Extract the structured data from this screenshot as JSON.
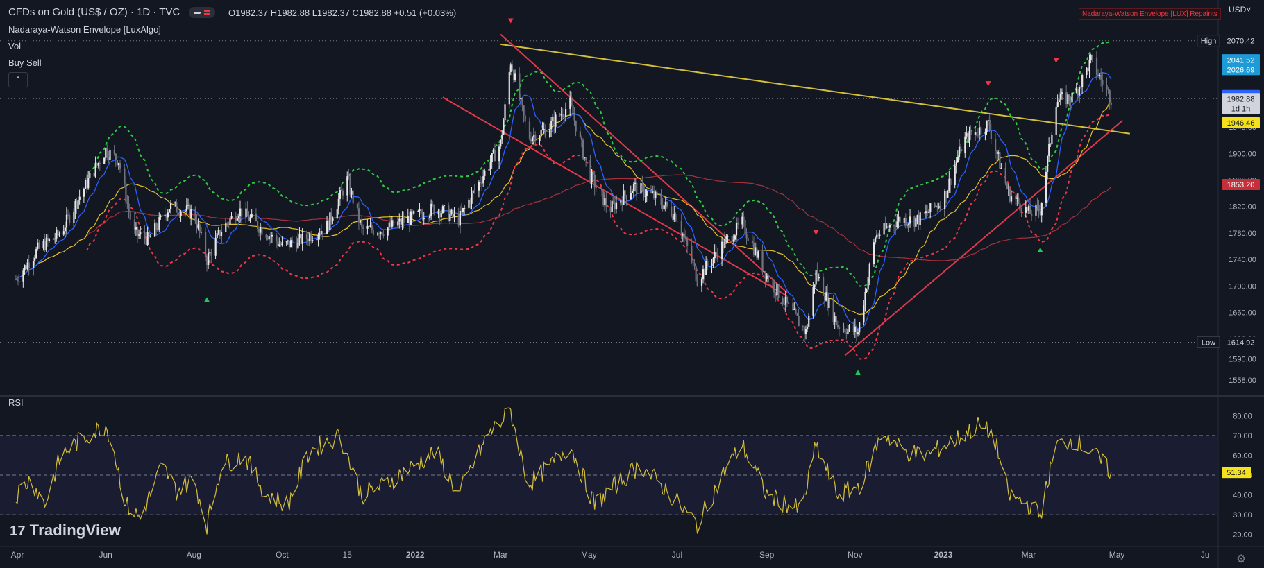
{
  "header": {
    "symbol_title": "CFDs on Gold (US$ / OZ) · 1D · TVC",
    "ohlc": "O1982.37  H1982.88  L1982.37  C1982.88  +0.51 (+0.03%)",
    "indicators": [
      "Nadaraya-Watson Envelope [LuxAlgo]",
      "Vol",
      "Buy Sell"
    ],
    "repaint_notice": "Nadaraya-Watson Envelope [LUX] Repaints",
    "currency": "USD"
  },
  "rsi_panel": {
    "title": "RSI",
    "current_value": "51.34"
  },
  "watermark": "TradingView",
  "colors": {
    "background": "#131722",
    "up_candle": "#e6e6e6",
    "down_candle": "#6f7480",
    "upper_envelope": "#2ecc40",
    "lower_envelope": "#f23645",
    "sma_fast": "#2962ff",
    "sma_mid": "#e6c229",
    "sma_slow": "#a8323c",
    "trendline_yellow": "#d4bf3a",
    "channel_red": "#e03a4a",
    "rsi_line": "#d4bf3a"
  },
  "chart_data": [
    {
      "type": "candlestick",
      "x_axis_labels": [
        "Apr",
        "Jun",
        "Aug",
        "Oct",
        "15",
        "2022",
        "Mar",
        "May",
        "Jul",
        "Sep",
        "Nov",
        "2023",
        "Mar",
        "May",
        "Ju"
      ],
      "y_axis_ticks": [
        1558,
        1590,
        1620,
        1660,
        1700,
        1740,
        1780,
        1820,
        1860,
        1900,
        1940
      ],
      "y_axis_tick_labels": [
        "1558.00",
        "1590.00",
        "1620.00",
        "1660.00",
        "1700.00",
        "1740.00",
        "1780.00",
        "1820.00",
        "1860.00",
        "1900.00",
        "1940.00"
      ],
      "ylim": [
        1540,
        2090
      ],
      "price_labels": [
        {
          "text": "High",
          "value": "2070.42",
          "color": "#131722",
          "text_color": "#d1d4dc",
          "price": 2070.42
        },
        {
          "text": "",
          "value": "2041.58",
          "color": "#1e9bd7",
          "price": 2041.58
        },
        {
          "text": "",
          "value": "2041.52",
          "color": "#1e9bd7",
          "price": 2041.52
        },
        {
          "text": "",
          "value": "2028.65",
          "color": "#1e9bd7",
          "price": 2028.65
        },
        {
          "text": "",
          "value": "2026.69",
          "color": "#1e9bd7",
          "price": 2026.69
        },
        {
          "text": "",
          "value": "1987.59",
          "color": "#2962ff",
          "price": 1987.59
        },
        {
          "text": "",
          "value": "1982.88",
          "color": "#d1d4dc",
          "price": 1982.88,
          "sub": "1d 1h"
        },
        {
          "text": "",
          "value": "1946.46",
          "color": "#f5e11b",
          "price": 1946.46
        },
        {
          "text": "",
          "value": "1853.20",
          "color": "#c62e3a",
          "price": 1853.2
        },
        {
          "text": "Low",
          "value": "1614.92",
          "color": "#131722",
          "text_color": "#d1d4dc",
          "price": 1614.92
        }
      ],
      "price_series": [
        [
          "2021-03-31",
          1710
        ],
        [
          "2021-04-15",
          1755
        ],
        [
          "2021-05-01",
          1780
        ],
        [
          "2021-05-15",
          1840
        ],
        [
          "2021-06-01",
          1905
        ],
        [
          "2021-06-10",
          1890
        ],
        [
          "2021-06-20",
          1780
        ],
        [
          "2021-07-01",
          1770
        ],
        [
          "2021-07-15",
          1820
        ],
        [
          "2021-08-01",
          1810
        ],
        [
          "2021-08-10",
          1740
        ],
        [
          "2021-08-20",
          1785
        ],
        [
          "2021-09-01",
          1815
        ],
        [
          "2021-09-15",
          1790
        ],
        [
          "2021-10-01",
          1760
        ],
        [
          "2021-10-15",
          1770
        ],
        [
          "2021-11-01",
          1790
        ],
        [
          "2021-11-15",
          1860
        ],
        [
          "2021-11-25",
          1785
        ],
        [
          "2021-12-10",
          1785
        ],
        [
          "2022-01-01",
          1805
        ],
        [
          "2022-01-15",
          1818
        ],
        [
          "2022-01-31",
          1800
        ],
        [
          "2022-02-15",
          1860
        ],
        [
          "2022-03-01",
          1915
        ],
        [
          "2022-03-08",
          2040
        ],
        [
          "2022-03-20",
          1925
        ],
        [
          "2022-04-01",
          1935
        ],
        [
          "2022-04-18",
          1975
        ],
        [
          "2022-05-01",
          1870
        ],
        [
          "2022-05-15",
          1815
        ],
        [
          "2022-06-01",
          1850
        ],
        [
          "2022-06-15",
          1835
        ],
        [
          "2022-07-01",
          1805
        ],
        [
          "2022-07-15",
          1710
        ],
        [
          "2022-08-01",
          1760
        ],
        [
          "2022-08-15",
          1795
        ],
        [
          "2022-09-01",
          1715
        ],
        [
          "2022-09-15",
          1670
        ],
        [
          "2022-09-28",
          1630
        ],
        [
          "2022-10-05",
          1720
        ],
        [
          "2022-10-20",
          1640
        ],
        [
          "2022-11-03",
          1630
        ],
        [
          "2022-11-15",
          1775
        ],
        [
          "2022-12-01",
          1800
        ],
        [
          "2022-12-15",
          1800
        ],
        [
          "2023-01-01",
          1830
        ],
        [
          "2023-01-15",
          1920
        ],
        [
          "2023-02-01",
          1945
        ],
        [
          "2023-02-15",
          1840
        ],
        [
          "2023-03-01",
          1810
        ],
        [
          "2023-03-09",
          1815
        ],
        [
          "2023-03-20",
          1980
        ],
        [
          "2023-04-01",
          1985
        ],
        [
          "2023-04-13",
          2040
        ],
        [
          "2023-04-27",
          1982.88
        ]
      ],
      "signals": [
        {
          "type": "buy",
          "date": "2021-08-10"
        },
        {
          "type": "sell",
          "date": "2022-03-08"
        },
        {
          "type": "buy",
          "date": "2022-11-03"
        },
        {
          "type": "sell",
          "date": "2022-10-05"
        },
        {
          "type": "sell",
          "date": "2023-02-01"
        },
        {
          "type": "buy",
          "date": "2023-03-09"
        },
        {
          "type": "sell",
          "date": "2023-03-20"
        }
      ],
      "trendlines": [
        {
          "name": "descending resistance",
          "color": "#d4bf3a",
          "from": [
            "2022-03-01",
            2065
          ],
          "to": [
            "2023-05-10",
            1930
          ]
        },
        {
          "name": "channel upper",
          "color": "#e03a4a",
          "from": [
            "2022-03-01",
            2080
          ],
          "to": [
            "2022-09-15",
            1690
          ]
        },
        {
          "name": "channel lower",
          "color": "#e03a4a",
          "from": [
            "2022-01-20",
            1985
          ],
          "to": [
            "2022-09-15",
            1685
          ]
        },
        {
          "name": "ascending support",
          "color": "#e03a4a",
          "from": [
            "2022-10-25",
            1595
          ],
          "to": [
            "2023-05-05",
            1950
          ]
        }
      ]
    },
    {
      "type": "line",
      "title": "RSI",
      "y_axis_ticks": [
        20,
        30,
        40,
        50,
        60,
        70,
        80
      ],
      "y_axis_tick_labels": [
        "20.00",
        "30.00",
        "40.00",
        "50.00",
        "60.00",
        "70.00",
        "80.00"
      ],
      "ylim": [
        15,
        85
      ],
      "bands": [
        30,
        50,
        70
      ],
      "series": [
        {
          "values": [
            [
              "2021-03-31",
              40
            ],
            [
              "2021-04-10",
              48
            ],
            [
              "2021-04-20",
              35
            ],
            [
              "2021-05-01",
              60
            ],
            [
              "2021-05-15",
              68
            ],
            [
              "2021-06-01",
              75
            ],
            [
              "2021-06-05",
              68
            ],
            [
              "2021-06-15",
              35
            ],
            [
              "2021-06-25",
              28
            ],
            [
              "2021-07-10",
              55
            ],
            [
              "2021-07-20",
              42
            ],
            [
              "2021-08-01",
              48
            ],
            [
              "2021-08-10",
              25
            ],
            [
              "2021-08-20",
              55
            ],
            [
              "2021-09-05",
              60
            ],
            [
              "2021-09-20",
              40
            ],
            [
              "2021-10-05",
              35
            ],
            [
              "2021-10-20",
              62
            ],
            [
              "2021-11-10",
              70
            ],
            [
              "2021-11-25",
              40
            ],
            [
              "2021-12-10",
              45
            ],
            [
              "2022-01-01",
              55
            ],
            [
              "2022-01-15",
              62
            ],
            [
              "2022-01-31",
              40
            ],
            [
              "2022-02-20",
              70
            ],
            [
              "2022-03-08",
              82
            ],
            [
              "2022-03-20",
              45
            ],
            [
              "2022-04-05",
              55
            ],
            [
              "2022-04-18",
              65
            ],
            [
              "2022-05-05",
              35
            ],
            [
              "2022-05-20",
              45
            ],
            [
              "2022-06-05",
              55
            ],
            [
              "2022-06-20",
              45
            ],
            [
              "2022-07-15",
              25
            ],
            [
              "2022-08-05",
              55
            ],
            [
              "2022-08-15",
              65
            ],
            [
              "2022-09-01",
              40
            ],
            [
              "2022-09-25",
              32
            ],
            [
              "2022-10-05",
              65
            ],
            [
              "2022-10-20",
              40
            ],
            [
              "2022-11-05",
              45
            ],
            [
              "2022-11-20",
              72
            ],
            [
              "2022-12-05",
              62
            ],
            [
              "2022-12-20",
              60
            ],
            [
              "2023-01-10",
              68
            ],
            [
              "2023-01-25",
              75
            ],
            [
              "2023-02-05",
              70
            ],
            [
              "2023-02-15",
              40
            ],
            [
              "2023-03-01",
              35
            ],
            [
              "2023-03-09",
              30
            ],
            [
              "2023-03-20",
              65
            ],
            [
              "2023-04-01",
              68
            ],
            [
              "2023-04-13",
              62
            ],
            [
              "2023-04-27",
              51.34
            ]
          ]
        }
      ]
    }
  ]
}
